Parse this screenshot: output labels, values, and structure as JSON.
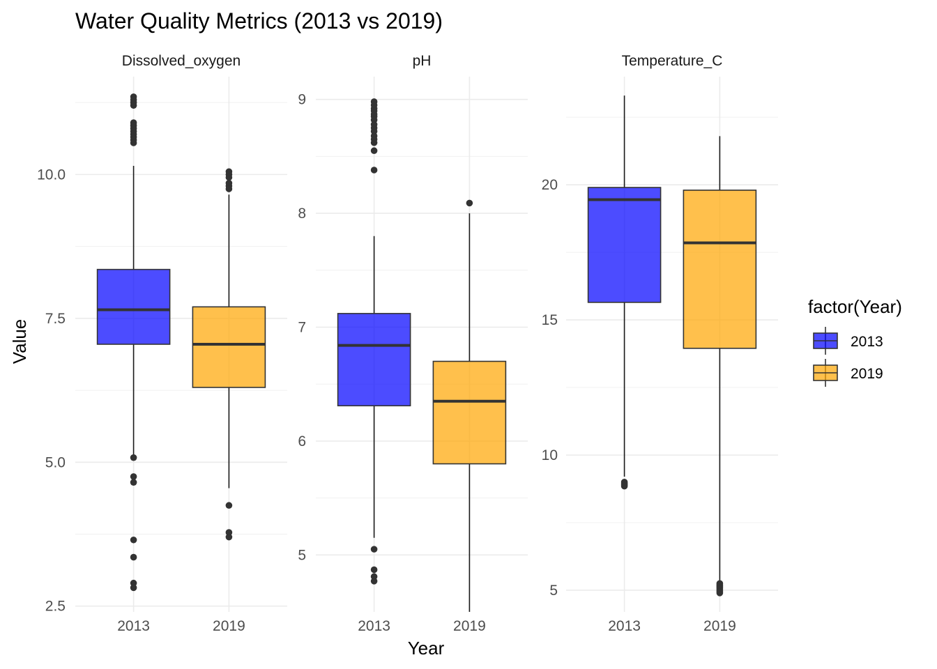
{
  "chart_data": {
    "type": "boxplot",
    "title": "Water Quality Metrics (2013 vs 2019)",
    "xlabel": "Year",
    "ylabel": "Value",
    "categories": [
      "2013",
      "2019"
    ],
    "legend": {
      "title": "factor(Year)",
      "placement": "right",
      "entries": [
        {
          "label": "2013",
          "color": "#0000ff"
        },
        {
          "label": "2019",
          "color": "#ffa500"
        }
      ]
    },
    "grid": true,
    "facets": [
      {
        "name": "Dissolved_oxygen",
        "ylim": [
          2.4,
          11.7
        ],
        "ticks": [
          2.5,
          5.0,
          7.5,
          10.0
        ],
        "tick_labels": [
          "2.5",
          "5.0",
          "7.5",
          "10.0"
        ],
        "boxes": [
          {
            "year": "2013",
            "whisker_low": 5.1,
            "q1": 7.05,
            "median": 7.65,
            "q3": 8.35,
            "whisker_high": 10.15,
            "outliers": [
              11.35,
              11.3,
              11.25,
              11.2,
              10.9,
              10.85,
              10.8,
              10.75,
              10.7,
              10.65,
              10.6,
              10.55,
              5.08,
              4.75,
              4.65,
              3.65,
              3.35,
              2.9,
              2.82
            ]
          },
          {
            "year": "2019",
            "whisker_low": 4.55,
            "q1": 6.3,
            "median": 7.05,
            "q3": 7.7,
            "whisker_high": 9.65,
            "outliers": [
              10.05,
              10.0,
              9.95,
              9.85,
              9.8,
              9.75,
              4.25,
              3.78,
              3.7
            ]
          }
        ]
      },
      {
        "name": "pH",
        "ylim": [
          4.5,
          9.2
        ],
        "ticks": [
          5,
          6,
          7,
          8,
          9
        ],
        "tick_labels": [
          "5",
          "6",
          "7",
          "8",
          "9"
        ],
        "boxes": [
          {
            "year": "2013",
            "whisker_low": 5.15,
            "q1": 6.31,
            "median": 6.84,
            "q3": 7.12,
            "whisker_high": 7.8,
            "outliers": [
              8.98,
              8.95,
              8.92,
              8.9,
              8.87,
              8.85,
              8.82,
              8.78,
              8.75,
              8.72,
              8.68,
              8.65,
              8.62,
              8.55,
              8.38,
              5.05,
              4.87,
              4.81,
              4.77
            ]
          },
          {
            "year": "2019",
            "whisker_low": 4.5,
            "q1": 5.8,
            "median": 6.35,
            "q3": 6.7,
            "whisker_high": 8.0,
            "outliers": [
              8.09
            ]
          }
        ]
      },
      {
        "name": "Temperature_C",
        "ylim": [
          4.2,
          24.0
        ],
        "ticks": [
          5,
          10,
          15,
          20
        ],
        "tick_labels": [
          "5",
          "10",
          "15",
          "20"
        ],
        "boxes": [
          {
            "year": "2013",
            "whisker_low": 9.2,
            "q1": 15.65,
            "median": 19.45,
            "q3": 19.9,
            "whisker_high": 23.3,
            "outliers": [
              9.0,
              8.95,
              8.9,
              8.85
            ]
          },
          {
            "year": "2019",
            "whisker_low": 5.3,
            "q1": 13.95,
            "median": 17.85,
            "q3": 19.8,
            "whisker_high": 21.8,
            "outliers": [
              5.25,
              5.2,
              5.15,
              5.1,
              5.05,
              5.0,
              4.95,
              4.9
            ]
          }
        ]
      }
    ]
  }
}
